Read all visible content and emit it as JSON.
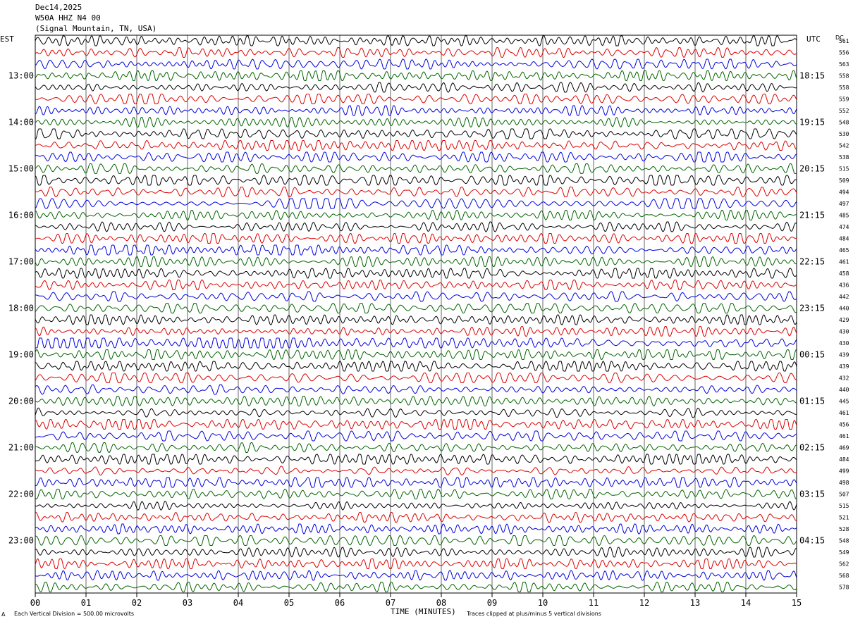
{
  "header": {
    "date": "Dec14,2025",
    "station": "W50A HHZ N4 00",
    "location": "(Signal Mountain, TN, USA)"
  },
  "left_timezone": "EST",
  "right_timezone": "UTC",
  "dc_label": "DC",
  "footer": {
    "scale_note": "Each Vertical Division =  500.00 microvolts",
    "xlabel": "TIME (MINUTES)",
    "clip_note": "Traces clipped at plus/minus 5 vertical divisions",
    "corner_mark": "A"
  },
  "colors": {
    "trace_cycle": [
      "#000000",
      "#dd0000",
      "#0000dd",
      "#006400"
    ],
    "grid": "#000000",
    "background": "#ffffff"
  },
  "chart_data": {
    "type": "line",
    "title": "W50A HHZ N4 00",
    "xlabel": "TIME (MINUTES)",
    "xlim": [
      0,
      15
    ],
    "x_ticks": [
      "00",
      "01",
      "02",
      "03",
      "04",
      "05",
      "06",
      "07",
      "08",
      "09",
      "10",
      "11",
      "12",
      "13",
      "14",
      "15"
    ],
    "rows_per_hour": 4,
    "start_row_offset": 3,
    "left_hour_labels": [
      "13:00",
      "14:00",
      "15:00",
      "16:00",
      "17:00",
      "18:00",
      "19:00",
      "20:00",
      "21:00",
      "22:00",
      "23:00"
    ],
    "right_hour_labels": [
      "18:15",
      "19:15",
      "20:15",
      "21:15",
      "22:15",
      "23:15",
      "00:15",
      "01:15",
      "02:15",
      "03:15",
      "04:15"
    ],
    "dc_offsets": [
      561,
      556,
      563,
      558,
      558,
      559,
      552,
      548,
      530,
      542,
      538,
      515,
      509,
      494,
      497,
      485,
      474,
      484,
      465,
      461,
      458,
      436,
      442,
      440,
      429,
      430,
      430,
      439,
      439,
      432,
      440,
      445,
      461,
      456,
      461,
      469,
      484,
      499,
      498,
      507,
      515,
      521,
      528,
      548,
      549,
      562,
      568,
      578
    ],
    "clip_divisions": 5,
    "vertical_division_microvolts": 500.0
  }
}
